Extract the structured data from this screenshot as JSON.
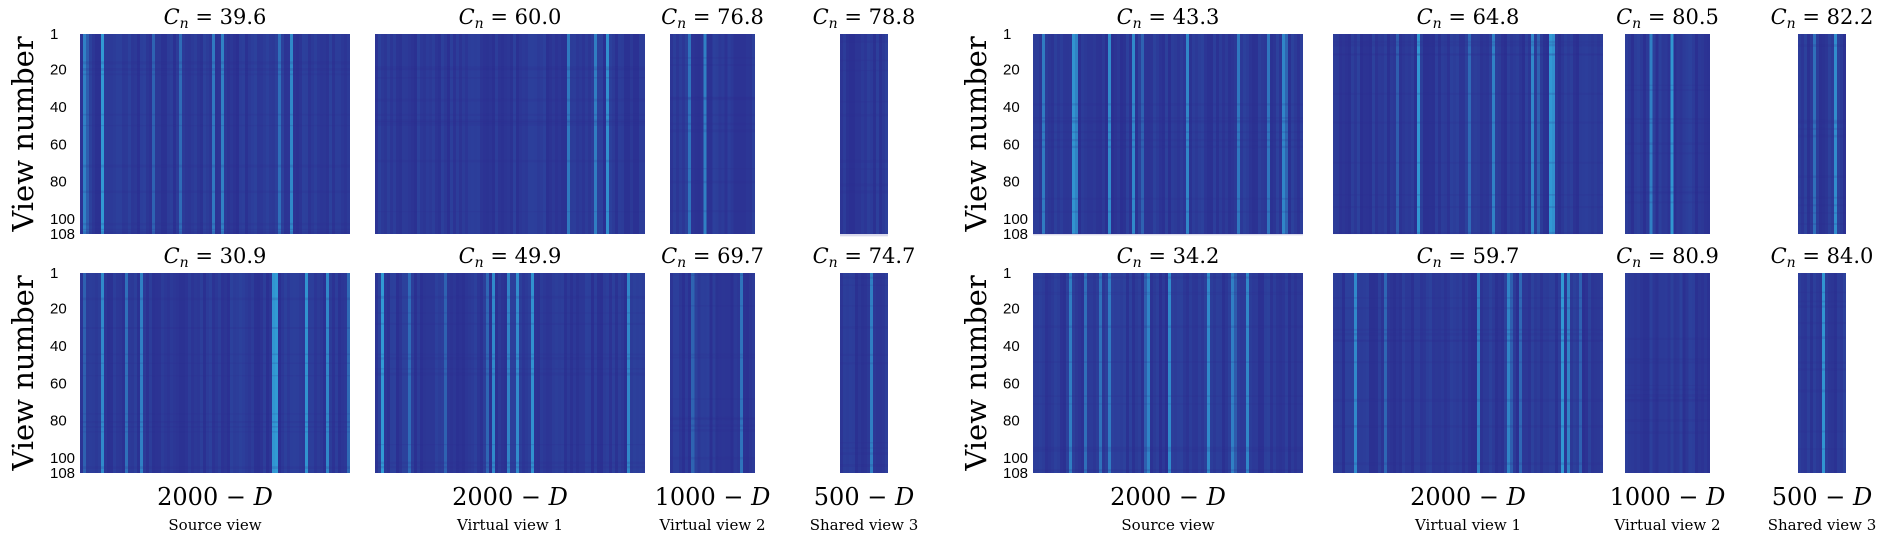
{
  "chart_data": {
    "type": "heatmap",
    "ylabel": "View number",
    "y_ticks": [
      1,
      20,
      40,
      60,
      80,
      100,
      108
    ],
    "y_range": [
      1,
      108
    ],
    "colors": {
      "low": "#2b2a8e",
      "high": "#33b7e6",
      "background": "#ffffff"
    },
    "column_labels": [
      {
        "dimension": "2000 − D",
        "name": "Source view"
      },
      {
        "dimension": "2000 − D",
        "name": "Virtual view 1"
      },
      {
        "dimension": "1000 − D",
        "name": "Virtual view 2"
      },
      {
        "dimension": "500 − D",
        "name": "Shared view 3"
      }
    ],
    "blocks": [
      {
        "rows": [
          {
            "titles": [
              {
                "prefix": "C",
                "subscript": "n",
                "value": "39.6"
              },
              {
                "prefix": "C",
                "subscript": "n",
                "value": "60.0"
              },
              {
                "prefix": "C",
                "subscript": "n",
                "value": "76.8"
              },
              {
                "prefix": "C",
                "subscript": "n",
                "value": "78.8"
              }
            ]
          },
          {
            "titles": [
              {
                "prefix": "C",
                "subscript": "n",
                "value": "30.9"
              },
              {
                "prefix": "C",
                "subscript": "n",
                "value": "49.9"
              },
              {
                "prefix": "C",
                "subscript": "n",
                "value": "69.7"
              },
              {
                "prefix": "C",
                "subscript": "n",
                "value": "74.7"
              }
            ]
          }
        ]
      },
      {
        "rows": [
          {
            "titles": [
              {
                "prefix": "C",
                "subscript": "n",
                "value": "43.3"
              },
              {
                "prefix": "C",
                "subscript": "n",
                "value": "64.8"
              },
              {
                "prefix": "C",
                "subscript": "n",
                "value": "80.5"
              },
              {
                "prefix": "C",
                "subscript": "n",
                "value": "82.2"
              }
            ]
          },
          {
            "titles": [
              {
                "prefix": "C",
                "subscript": "n",
                "value": "34.2"
              },
              {
                "prefix": "C",
                "subscript": "n",
                "value": "59.7"
              },
              {
                "prefix": "C",
                "subscript": "n",
                "value": "80.9"
              },
              {
                "prefix": "C",
                "subscript": "n",
                "value": "84.0"
              }
            ]
          }
        ]
      }
    ]
  }
}
